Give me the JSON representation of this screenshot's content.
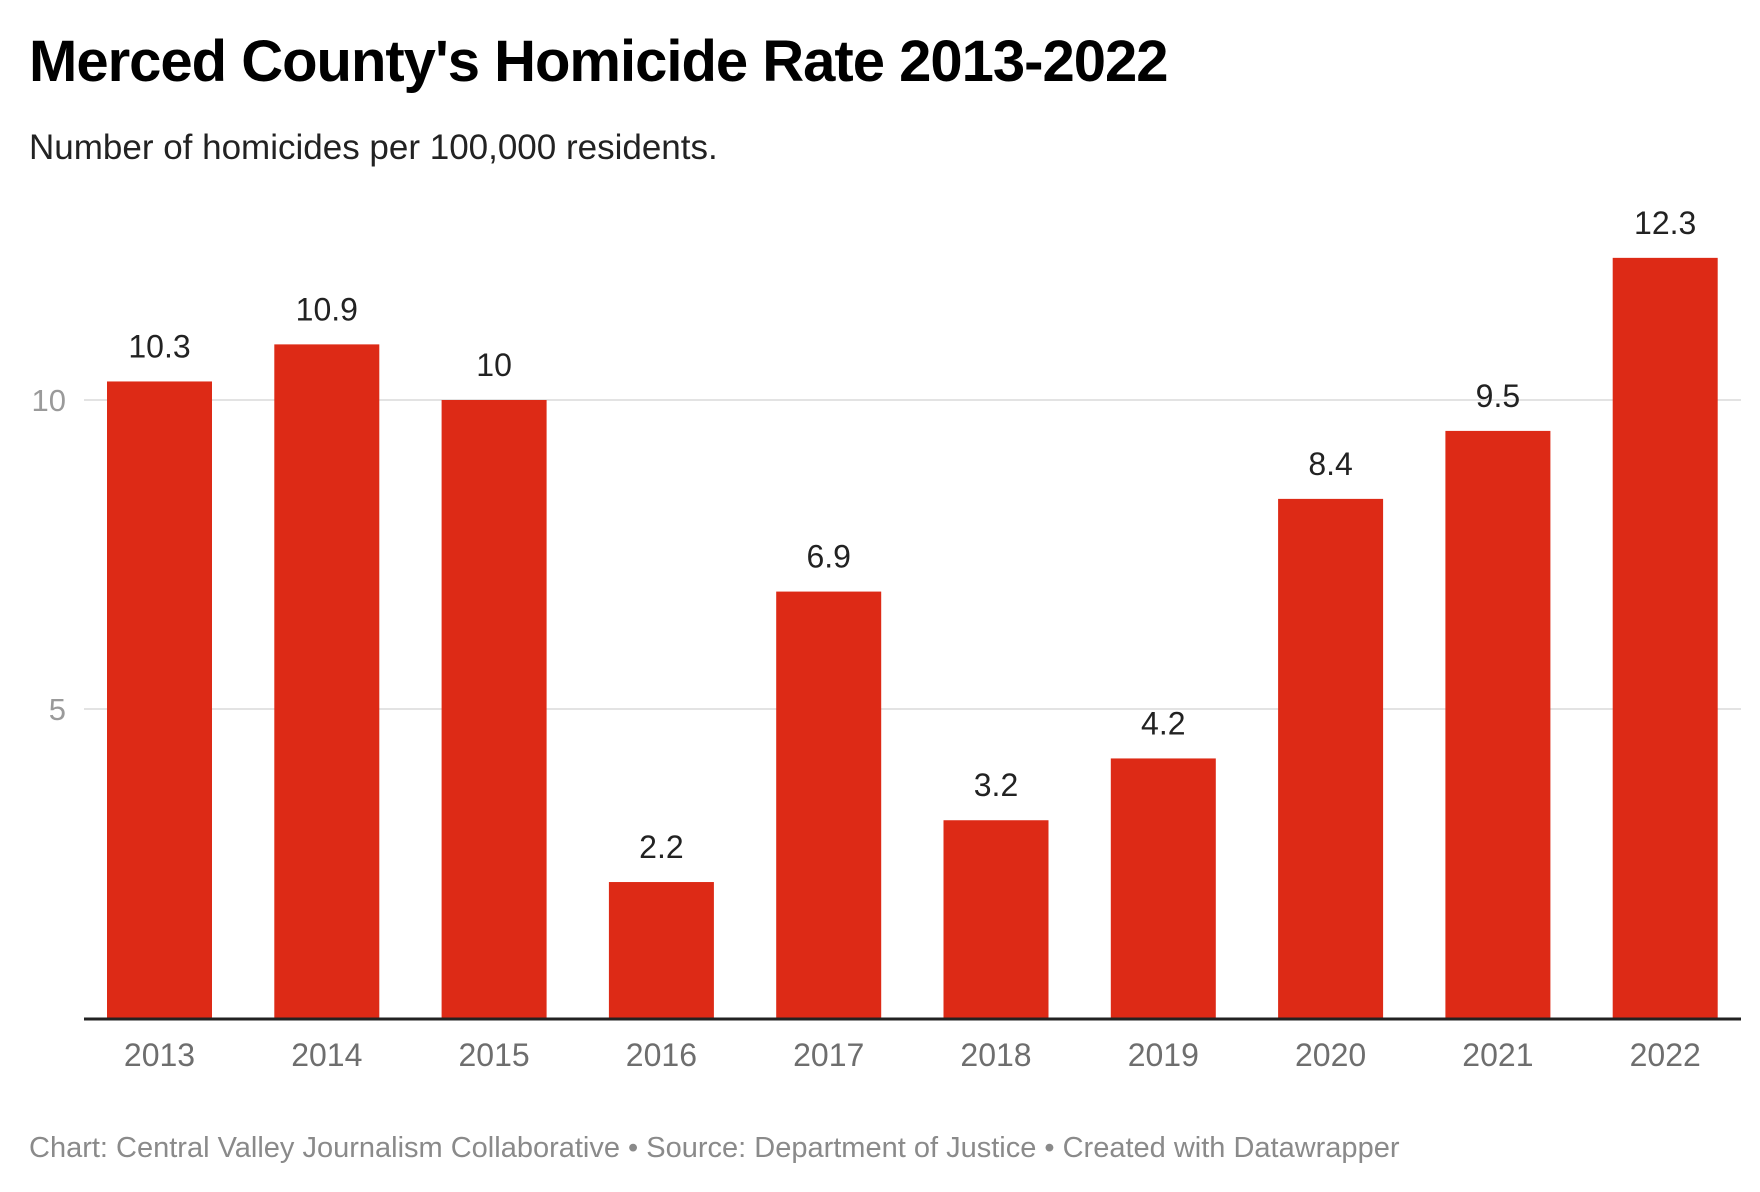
{
  "chart_data": {
    "type": "bar",
    "title": "Merced County's Homicide Rate 2013-2022",
    "subtitle": "Number of homicides per 100,000 residents.",
    "categories": [
      "2013",
      "2014",
      "2015",
      "2016",
      "2017",
      "2018",
      "2019",
      "2020",
      "2021",
      "2022"
    ],
    "values": [
      10.3,
      10.9,
      10,
      2.2,
      6.9,
      3.2,
      4.2,
      8.4,
      9.5,
      12.3
    ],
    "value_labels": [
      "10.3",
      "10.9",
      "10",
      "2.2",
      "6.9",
      "3.2",
      "4.2",
      "8.4",
      "9.5",
      "12.3"
    ],
    "yticks": [
      5,
      10
    ],
    "ytick_labels": [
      "5",
      "10"
    ],
    "ylim": [
      0,
      12.3
    ],
    "grid": true,
    "bar_color": "#dd2a16",
    "xlabel": "",
    "ylabel": ""
  },
  "footer": "Chart: Central Valley Journalism Collaborative • Source: Department of Justice • Created with Datawrapper"
}
